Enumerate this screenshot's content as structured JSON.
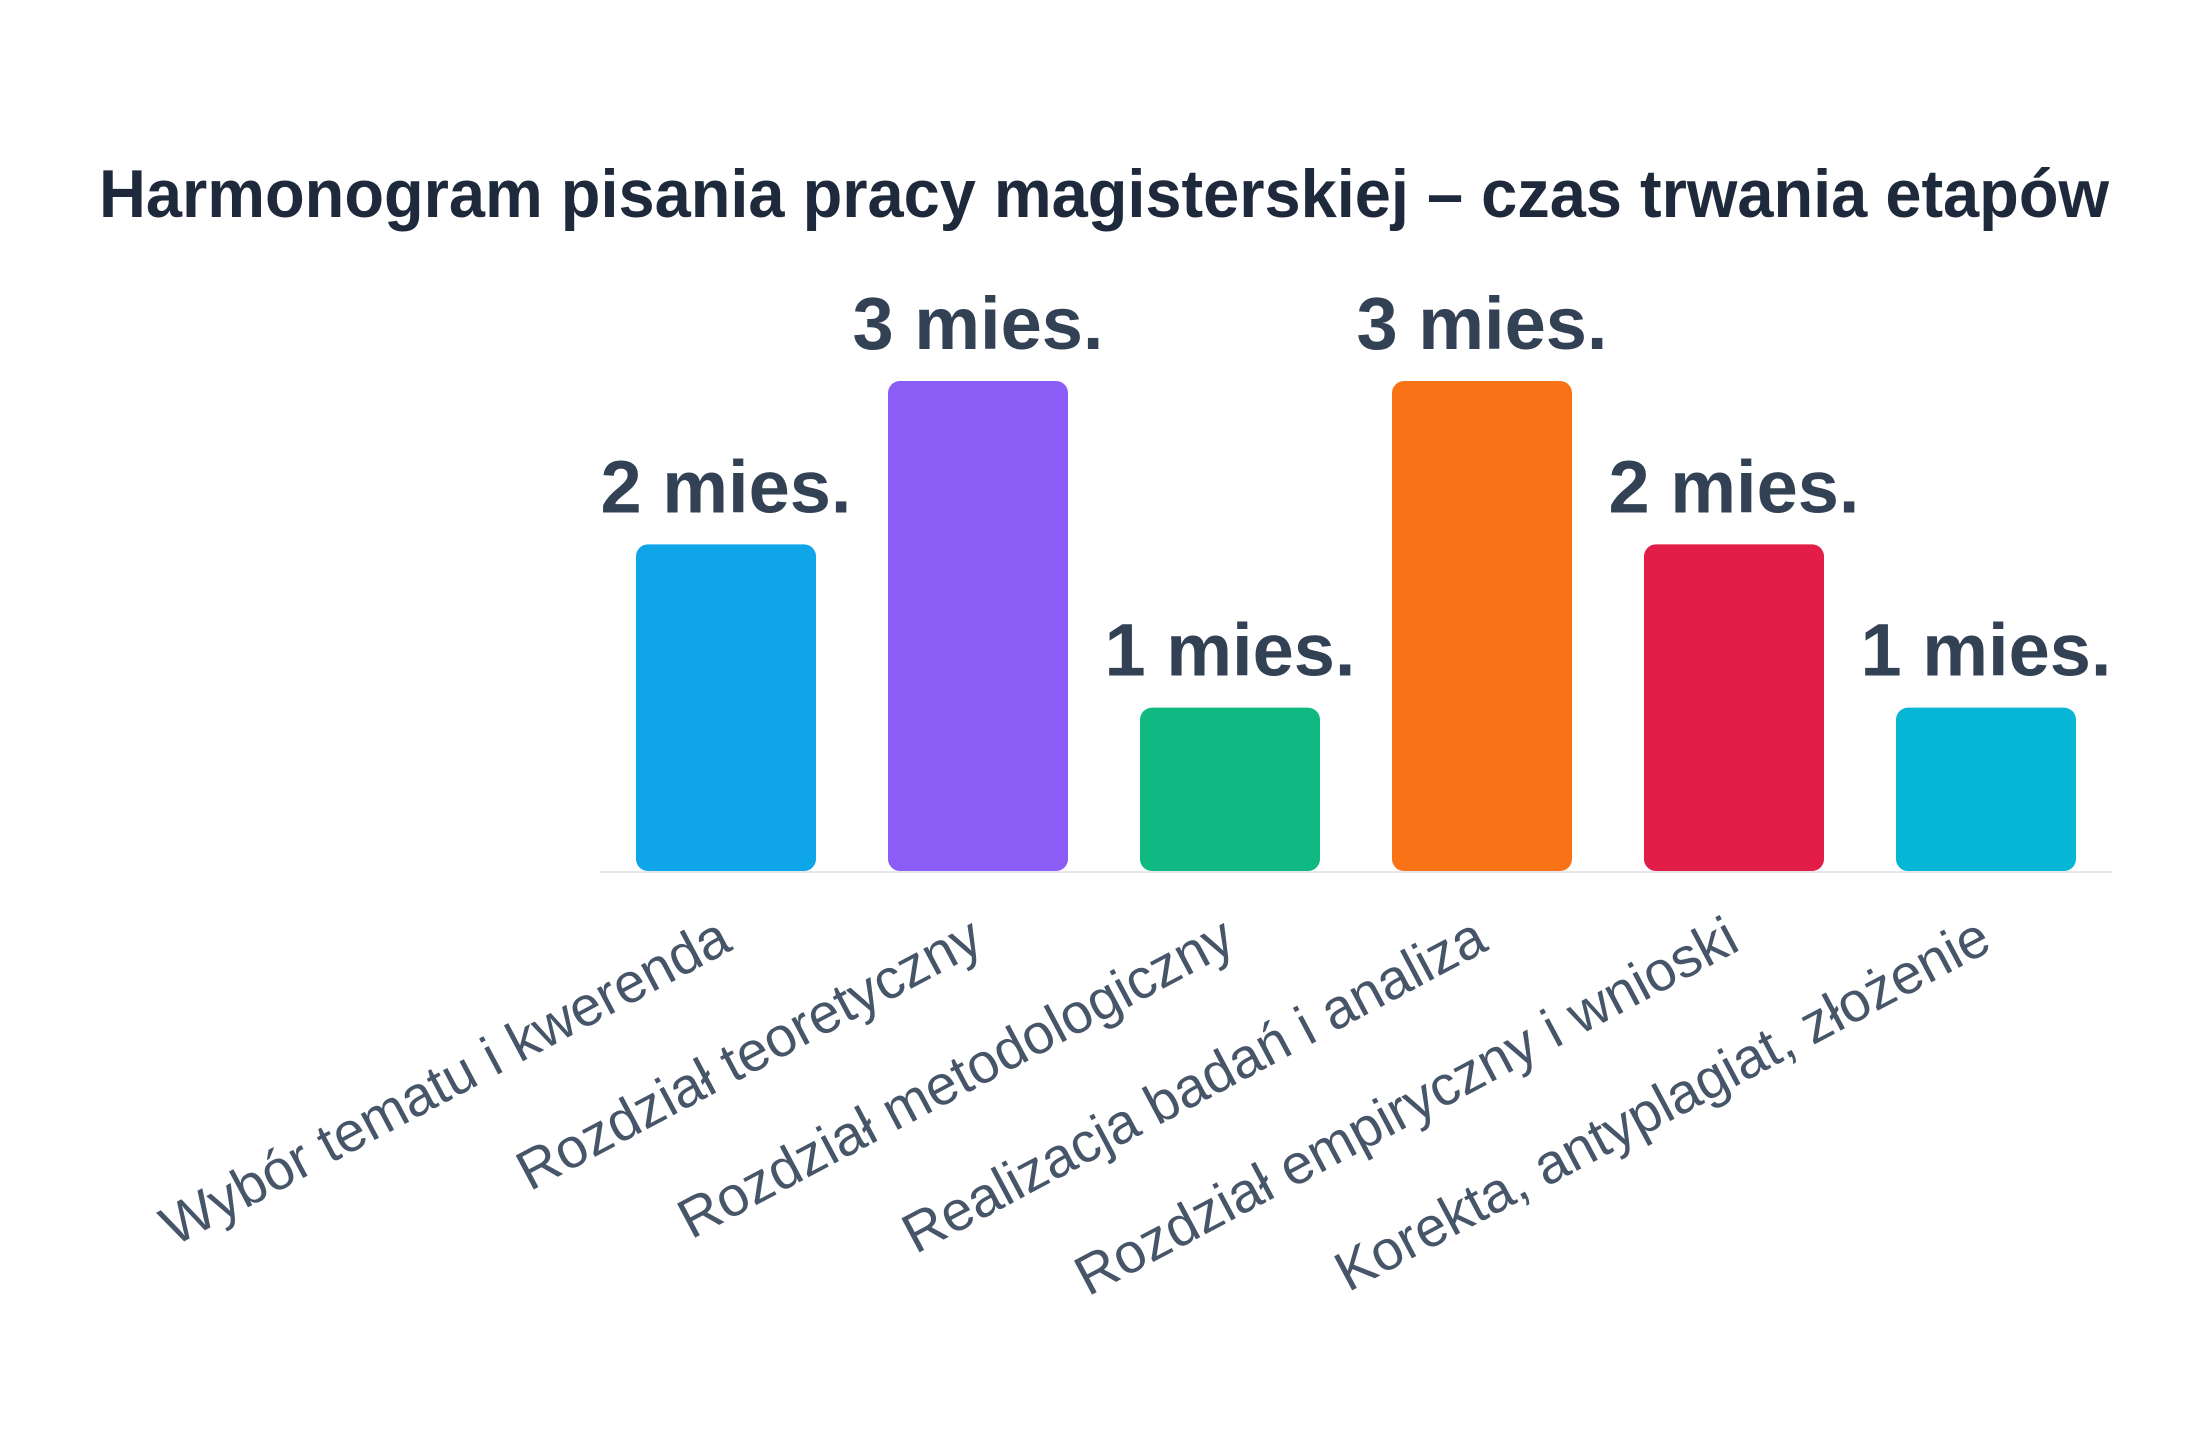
{
  "chart_data": {
    "type": "bar",
    "title": "Harmonogram pisania pracy magisterskiej – czas trwania etapów",
    "categories": [
      "Wybór tematu i kwerenda",
      "Rozdział teoretyczny",
      "Rozdział metodologiczny",
      "Realizacja badań i analiza",
      "Rozdział empiryczny i wnioski",
      "Korekta, antyplagiat, złożenie"
    ],
    "values": [
      2,
      3,
      1,
      3,
      2,
      1
    ],
    "value_labels": [
      "2 mies.",
      "3 mies.",
      "1 mies.",
      "3 mies.",
      "2 mies.",
      "1 mies."
    ],
    "colors": [
      "#0ea5e9",
      "#8b5cf6",
      "#10b981",
      "#f97316",
      "#e11d48",
      "#06b6d4"
    ]
  }
}
